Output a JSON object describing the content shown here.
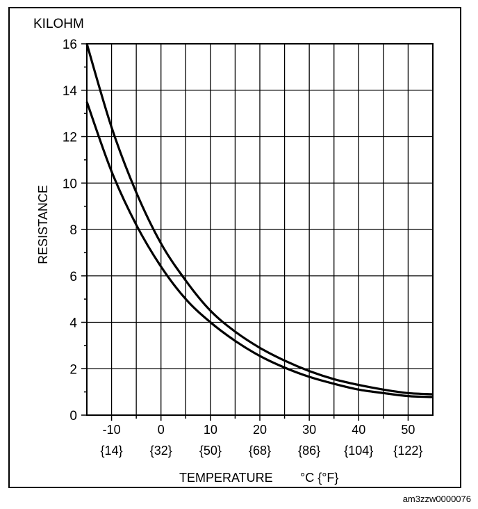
{
  "chart_data": {
    "type": "line",
    "unit_label": "KILOHM",
    "ylabel": "RESISTANCE",
    "xlabel": "TEMPERATURE",
    "xunit": "°C {°F}",
    "xlim": [
      -15,
      55
    ],
    "ylim": [
      0,
      16
    ],
    "y_ticks": [
      0,
      2,
      4,
      6,
      8,
      10,
      12,
      14,
      16
    ],
    "x_ticks": [
      {
        "c": -10,
        "f": "{14}"
      },
      {
        "c": 0,
        "f": "{32}"
      },
      {
        "c": 10,
        "f": "{50}"
      },
      {
        "c": 20,
        "f": "{68}"
      },
      {
        "c": 30,
        "f": "{86}"
      },
      {
        "c": 40,
        "f": "{104}"
      },
      {
        "c": 50,
        "f": "{122}"
      }
    ],
    "grid": true,
    "series": [
      {
        "x": [
          -15,
          -10,
          -5,
          0,
          5,
          10,
          15,
          20,
          25,
          30,
          35,
          40,
          45,
          50,
          55
        ],
        "values": [
          16.0,
          12.4,
          9.6,
          7.4,
          5.8,
          4.5,
          3.6,
          2.9,
          2.35,
          1.9,
          1.55,
          1.3,
          1.1,
          0.95,
          0.9
        ]
      },
      {
        "x": [
          -15,
          -10,
          -5,
          0,
          5,
          10,
          15,
          20,
          25,
          30,
          35,
          40,
          45,
          50,
          55
        ],
        "values": [
          13.5,
          10.5,
          8.2,
          6.4,
          5.0,
          4.0,
          3.2,
          2.55,
          2.05,
          1.65,
          1.35,
          1.1,
          0.95,
          0.82,
          0.78
        ]
      }
    ]
  },
  "figure_code": "am3zzw0000076"
}
